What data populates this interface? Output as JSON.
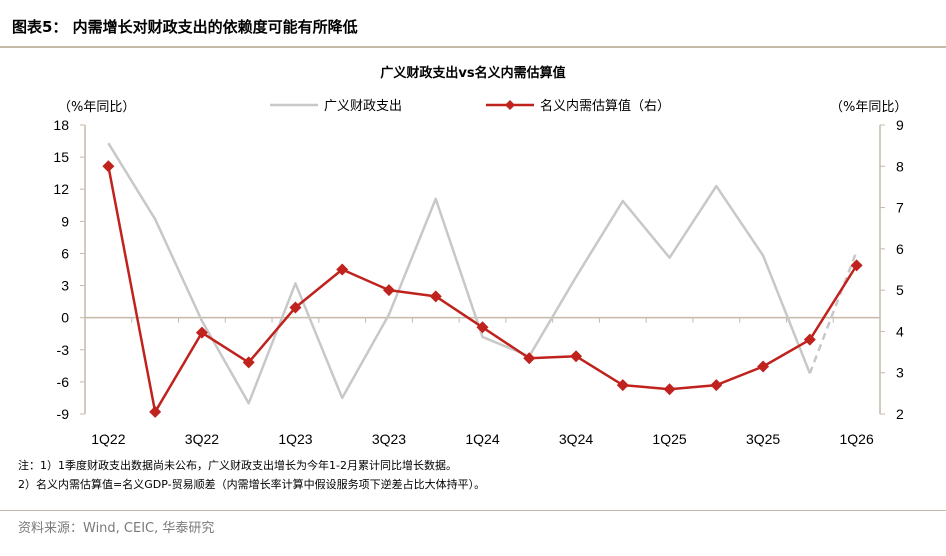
{
  "figure_label": "图表5：  内需增长对财政支出的依赖度可能有所降低",
  "notes": [
    "注：1）1季度财政支出数据尚未公布，广义财政支出增长为今年1-2月累计同比增长数据。",
    "2）名义内需估算值=名义GDP-贸易顺差（内需增长率计算中假设服务项下逆差占比大体持平）。"
  ],
  "source": "资料来源：Wind, CEIC, 华泰研究",
  "colors": {
    "fiscal": "#c8c8c8",
    "demand": "#c0221d",
    "frame": "#c6b9a9"
  },
  "chart_data": {
    "type": "line",
    "title": "广义财政支出vs名义内需估算值",
    "left_axis_unit": "（%年同比）",
    "right_axis_unit": "（%年同比）",
    "ylim_left": [
      -9,
      18
    ],
    "yticks_left": [
      18,
      15,
      12,
      9,
      6,
      3,
      0,
      -3,
      -6,
      -9
    ],
    "ylim_right": [
      2,
      9
    ],
    "yticks_right": [
      9,
      8,
      7,
      6,
      5,
      4,
      3,
      2
    ],
    "x": [
      "1Q22",
      "2Q22",
      "3Q22",
      "4Q22",
      "1Q23",
      "2Q23",
      "3Q23",
      "4Q23",
      "1Q24",
      "2Q24",
      "3Q24",
      "4Q24",
      "1Q25",
      "2Q25",
      "3Q25",
      "4Q25",
      "1Q26"
    ],
    "x_tick_labels": [
      "1Q22",
      "3Q22",
      "1Q23",
      "3Q23",
      "1Q24",
      "3Q24",
      "1Q25",
      "3Q25",
      "1Q26"
    ],
    "legend_placement": "top-center",
    "series": [
      {
        "name": "广义财政支出",
        "axis": "left",
        "style": "line",
        "values": [
          16.3,
          9.2,
          -0.3,
          -8.0,
          3.2,
          -7.5,
          0.3,
          11.1,
          -1.8,
          -3.6,
          3.8,
          10.9,
          5.6,
          12.3,
          5.8,
          -5.2,
          6.2
        ],
        "dashed_from_index": 15
      },
      {
        "name": "名义内需估算值（右）",
        "axis": "right",
        "style": "line-diamond",
        "values": [
          8.0,
          2.05,
          3.97,
          3.25,
          4.58,
          5.5,
          5.0,
          4.85,
          4.1,
          3.35,
          3.4,
          2.7,
          2.6,
          2.7,
          3.15,
          3.8,
          5.6
        ]
      }
    ]
  }
}
